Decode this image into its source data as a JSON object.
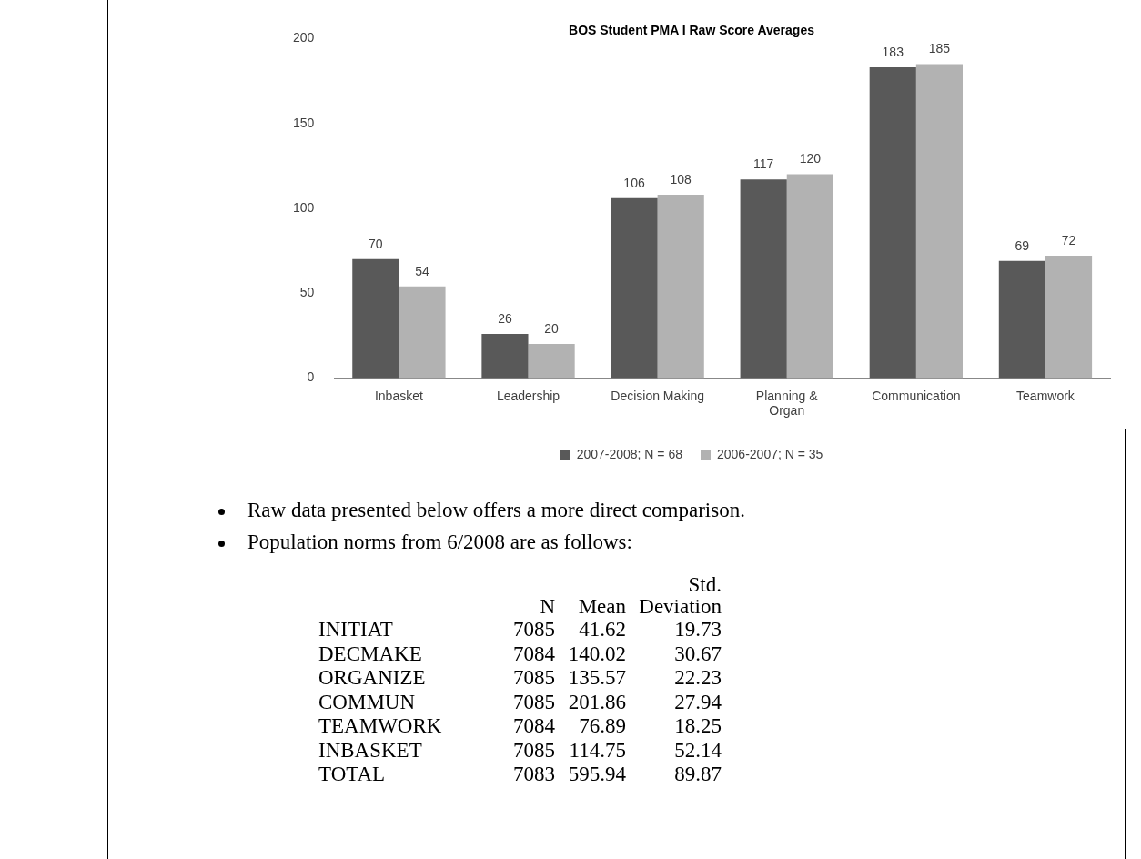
{
  "chart_data": [
    {
      "type": "bar",
      "title": "BOS Student PMA I Raw Score Averages",
      "categories": [
        "Inbasket",
        "Leadership",
        "Decision Making",
        "Planning & Organ",
        "Communication",
        "Teamwork"
      ],
      "series": [
        {
          "name": "2007-2008; N = 68",
          "color": "#595959",
          "values": [
            70,
            26,
            106,
            117,
            183,
            69
          ]
        },
        {
          "name": "2006-2007; N = 35",
          "color": "#b2b2b2",
          "values": [
            54,
            20,
            108,
            120,
            185,
            72
          ]
        }
      ],
      "ylim": [
        0,
        200
      ],
      "yticks": [
        0,
        50,
        100,
        150,
        200
      ],
      "grid": false,
      "legend": "bottom",
      "data_labels": true
    },
    {
      "type": "other",
      "annotations": [
        "Raw data presented below offers a more direct comparison.",
        "Population norms from 6/2008 are as follows:"
      ],
      "categories": [
        "N",
        "Mean",
        "Std. Deviation"
      ],
      "y_categories": [
        "INITIAT",
        "DECMAKE",
        "ORGANIZE",
        "COMMUN",
        "TEAMWORK",
        "INBASKET",
        "TOTAL"
      ],
      "cell_labels": [
        [
          "7085",
          "41.62",
          "19.73"
        ],
        [
          "7084",
          "140.02",
          "30.67"
        ],
        [
          "7085",
          "135.57",
          "22.23"
        ],
        [
          "7085",
          "201.86",
          "27.94"
        ],
        [
          "7084",
          "76.89",
          "18.25"
        ],
        [
          "7085",
          "114.75",
          "52.14"
        ],
        [
          "7083",
          "595.94",
          "89.87"
        ]
      ]
    }
  ]
}
